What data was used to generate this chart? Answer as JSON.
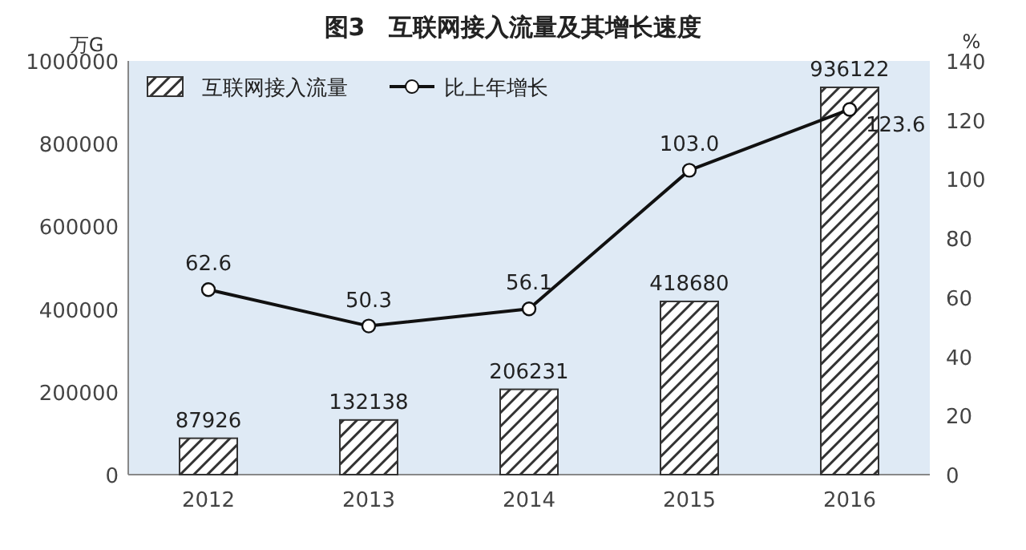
{
  "chart_data": {
    "type": "bar",
    "title": "图3　互联网接入流量及其增长速度",
    "ylabel": "万G",
    "y2label": "%",
    "categories": [
      "2012",
      "2013",
      "2014",
      "2015",
      "2016"
    ],
    "series": [
      {
        "name": "互联网接入流量",
        "color": "#333333",
        "values": [
          87926,
          132138,
          206231,
          418680,
          936122
        ]
      },
      {
        "name": "比上年增长",
        "type": "line",
        "axis": "y2",
        "color": "#111111",
        "marker": "circle",
        "values": [
          62.6,
          50.3,
          56.1,
          103.0,
          123.6
        ],
        "value_labels": [
          "62.6",
          "50.3",
          "56.1",
          "103.0",
          "123.6"
        ]
      }
    ],
    "ylim": [
      0,
      1000000
    ],
    "yticks": [
      0,
      200000,
      400000,
      600000,
      800000,
      1000000
    ],
    "y2lim": [
      0,
      140
    ],
    "y2ticks": [
      0,
      20,
      40,
      60,
      80,
      100,
      120,
      140
    ],
    "data_labels": true,
    "legend": "top left",
    "grid": false
  }
}
